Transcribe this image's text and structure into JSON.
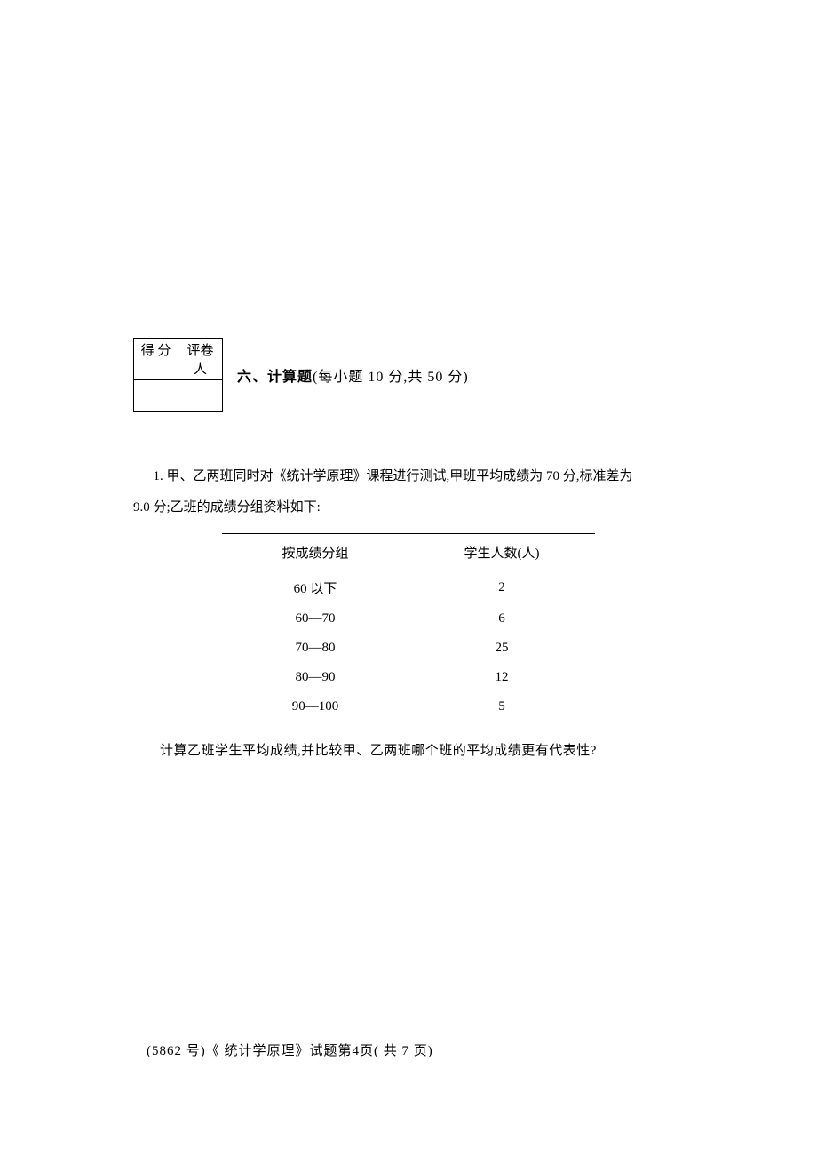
{
  "scoreBox": {
    "header1": "得   分",
    "header2": "评卷人"
  },
  "section": {
    "number": "六、",
    "title": "计算题",
    "subtitle": "(每小题 10 分,共 50 分)"
  },
  "question": {
    "line1": "1. 甲、乙两班同时对《统计学原理》课程进行测试,甲班平均成绩为 70 分,标准差为",
    "line2": "9.0 分;乙班的成绩分组资料如下:",
    "followUp": "计算乙班学生平均成绩,并比较甲、乙两班哪个班的平均成绩更有代表性?"
  },
  "table": {
    "headers": [
      "按成绩分组",
      "学生人数(人)"
    ],
    "rows": [
      [
        "60 以下",
        "2"
      ],
      [
        "60—70",
        "6"
      ],
      [
        "70—80",
        "25"
      ],
      [
        "80—90",
        "12"
      ],
      [
        "90—100",
        "5"
      ]
    ]
  },
  "footer": {
    "text": "(5862 号)《 统计学原理》试题第4页( 共   7 页)"
  }
}
